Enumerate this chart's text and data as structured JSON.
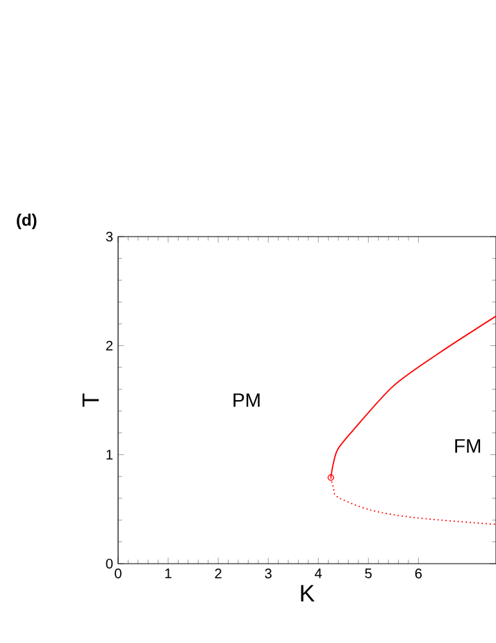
{
  "chart_data": {
    "type": "line",
    "title": "(d)",
    "xlabel": "K",
    "ylabel": "T",
    "xlim": [
      0,
      7.55
    ],
    "ylim": [
      0,
      3
    ],
    "xticks": [
      0,
      1,
      2,
      3,
      4,
      5,
      6
    ],
    "yticks": [
      0,
      1,
      2,
      3
    ],
    "grid": false,
    "annotations": [
      "PM",
      "FM"
    ],
    "series": [
      {
        "type": "line",
        "color": "#ff0000",
        "line_style": "solid",
        "x": [
          4.25,
          4.3,
          4.39,
          4.67,
          5.5,
          6.44,
          7.55
        ],
        "values": [
          0.79,
          0.92,
          1.05,
          1.21,
          1.63,
          1.94,
          2.27
        ]
      },
      {
        "type": "line",
        "color": "#ff0000",
        "line_style": "dotted",
        "x": [
          4.25,
          4.3,
          4.39,
          5.06,
          5.97,
          7.55
        ],
        "values": [
          0.79,
          0.7,
          0.61,
          0.49,
          0.42,
          0.36
        ]
      },
      {
        "type": "scatter",
        "color": "#ff0000",
        "marker": "circle",
        "x": [
          4.25
        ],
        "values": [
          0.79
        ]
      }
    ]
  }
}
